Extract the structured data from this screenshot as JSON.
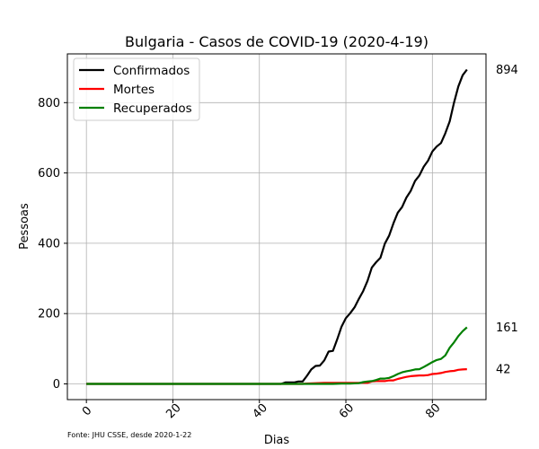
{
  "chart_data": {
    "type": "line",
    "title": "Bulgaria - Casos de COVID-19 (2020-4-19)",
    "xlabel": "Dias",
    "ylabel": "Pessoas",
    "source_note": "Fonte: JHU CSSE, desde 2020-1-22",
    "xlim": [
      -4.4,
      92.4
    ],
    "ylim": [
      -44.7,
      938.7
    ],
    "xticks": [
      0,
      20,
      40,
      60,
      80
    ],
    "yticks": [
      0,
      200,
      400,
      600,
      800
    ],
    "grid": true,
    "legend_position": "top-left",
    "series": [
      {
        "name": "Confirmados",
        "color": "#000000",
        "end_label": "894",
        "points": [
          [
            0,
            0
          ],
          [
            45,
            0
          ],
          [
            46,
            4
          ],
          [
            48,
            4
          ],
          [
            49,
            7
          ],
          [
            50,
            7
          ],
          [
            51,
            23
          ],
          [
            52,
            41
          ],
          [
            53,
            51
          ],
          [
            54,
            52
          ],
          [
            55,
            67
          ],
          [
            56,
            92
          ],
          [
            57,
            94
          ],
          [
            58,
            127
          ],
          [
            59,
            163
          ],
          [
            60,
            187
          ],
          [
            61,
            201
          ],
          [
            62,
            218
          ],
          [
            63,
            242
          ],
          [
            64,
            264
          ],
          [
            65,
            293
          ],
          [
            66,
            331
          ],
          [
            67,
            346
          ],
          [
            68,
            359
          ],
          [
            69,
            399
          ],
          [
            70,
            422
          ],
          [
            71,
            457
          ],
          [
            72,
            487
          ],
          [
            73,
            503
          ],
          [
            74,
            530
          ],
          [
            75,
            549
          ],
          [
            76,
            577
          ],
          [
            77,
            593
          ],
          [
            78,
            618
          ],
          [
            79,
            635
          ],
          [
            80,
            661
          ],
          [
            81,
            675
          ],
          [
            82,
            685
          ],
          [
            83,
            713
          ],
          [
            84,
            747
          ],
          [
            85,
            800
          ],
          [
            86,
            846
          ],
          [
            87,
            878
          ],
          [
            88,
            894
          ]
        ]
      },
      {
        "name": "Mortes",
        "color": "#ff0000",
        "end_label": "42",
        "points": [
          [
            0,
            0
          ],
          [
            50,
            0
          ],
          [
            51,
            1
          ],
          [
            53,
            2
          ],
          [
            55,
            3
          ],
          [
            57,
            3
          ],
          [
            59,
            3
          ],
          [
            61,
            3
          ],
          [
            63,
            3
          ],
          [
            65,
            3
          ],
          [
            66,
            7
          ],
          [
            67,
            8
          ],
          [
            68,
            8
          ],
          [
            69,
            8
          ],
          [
            70,
            10
          ],
          [
            71,
            10
          ],
          [
            72,
            14
          ],
          [
            73,
            17
          ],
          [
            74,
            20
          ],
          [
            75,
            22
          ],
          [
            76,
            23
          ],
          [
            77,
            24
          ],
          [
            78,
            24
          ],
          [
            79,
            25
          ],
          [
            80,
            28
          ],
          [
            81,
            29
          ],
          [
            82,
            31
          ],
          [
            83,
            34
          ],
          [
            84,
            36
          ],
          [
            85,
            37
          ],
          [
            86,
            40
          ],
          [
            87,
            41
          ],
          [
            88,
            42
          ]
        ]
      },
      {
        "name": "Recuperados",
        "color": "#008000",
        "end_label": "161",
        "points": [
          [
            0,
            0
          ],
          [
            57,
            0
          ],
          [
            59,
            1
          ],
          [
            61,
            1
          ],
          [
            63,
            2
          ],
          [
            64,
            5
          ],
          [
            65,
            7
          ],
          [
            66,
            8
          ],
          [
            67,
            11
          ],
          [
            68,
            15
          ],
          [
            69,
            15
          ],
          [
            70,
            17
          ],
          [
            71,
            22
          ],
          [
            72,
            28
          ],
          [
            73,
            33
          ],
          [
            74,
            36
          ],
          [
            75,
            38
          ],
          [
            76,
            41
          ],
          [
            77,
            42
          ],
          [
            78,
            48
          ],
          [
            79,
            55
          ],
          [
            80,
            62
          ],
          [
            81,
            68
          ],
          [
            82,
            71
          ],
          [
            83,
            81
          ],
          [
            84,
            103
          ],
          [
            85,
            118
          ],
          [
            86,
            136
          ],
          [
            87,
            150
          ],
          [
            88,
            161
          ]
        ]
      }
    ]
  }
}
